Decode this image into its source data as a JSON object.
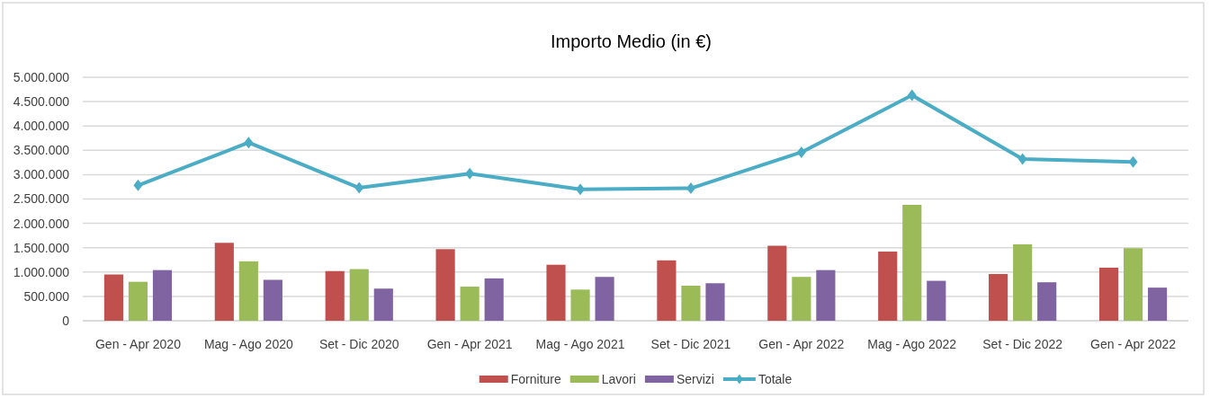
{
  "chart_data": {
    "type": "bar",
    "title": "Importo Medio (in €)",
    "categories": [
      "Gen - Apr 2020",
      "Mag - Ago 2020",
      "Set - Dic 2020",
      "Gen - Apr 2021",
      "Mag - Ago 2021",
      "Set - Dic 2021",
      "Gen - Apr 2022",
      "Mag - Ago 2022",
      "Set - Dic 2022",
      "Gen - Apr 2022"
    ],
    "series": [
      {
        "name": "Forniture",
        "color": "#c0504d",
        "values": [
          950000,
          1600000,
          1020000,
          1470000,
          1150000,
          1240000,
          1540000,
          1420000,
          960000,
          1090000
        ]
      },
      {
        "name": "Lavori",
        "color": "#9bbb59",
        "values": [
          800000,
          1220000,
          1060000,
          700000,
          640000,
          720000,
          900000,
          2380000,
          1570000,
          1490000
        ]
      },
      {
        "name": "Servizi",
        "color": "#8064a2",
        "values": [
          1040000,
          840000,
          660000,
          870000,
          900000,
          770000,
          1040000,
          820000,
          790000,
          680000
        ]
      },
      {
        "name": "Totale",
        "type": "line",
        "color": "#4bacc6",
        "marker": "diamond",
        "values": [
          2780000,
          3660000,
          2730000,
          3020000,
          2700000,
          2720000,
          3460000,
          4630000,
          3320000,
          3260000
        ]
      }
    ],
    "ylim": [
      0,
      5000000
    ],
    "yticks": [
      {
        "value": 0,
        "label": "0"
      },
      {
        "value": 500000,
        "label": "500.000"
      },
      {
        "value": 1000000,
        "label": "1.000.000"
      },
      {
        "value": 1500000,
        "label": "1.500.000"
      },
      {
        "value": 2000000,
        "label": "2.000.000"
      },
      {
        "value": 2500000,
        "label": "2.500.000"
      },
      {
        "value": 3000000,
        "label": "3.000.000"
      },
      {
        "value": 3500000,
        "label": "3.500.000"
      },
      {
        "value": 4000000,
        "label": "4.000.000"
      },
      {
        "value": 4500000,
        "label": "4.500.000"
      },
      {
        "value": 5000000,
        "label": "5.000.000"
      }
    ],
    "grid": "y",
    "legend": "bottom"
  }
}
